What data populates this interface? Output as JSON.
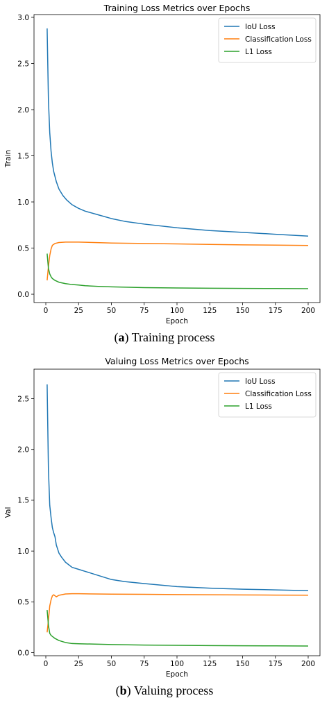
{
  "captions": [
    {
      "letter": "a",
      "text": "Training process"
    },
    {
      "letter": "b",
      "text": "Valuing process"
    }
  ],
  "colors": {
    "iou": "#1f77b4",
    "cls": "#ff7f0e",
    "l1": "#2ca02c"
  },
  "chart_data": [
    {
      "type": "line",
      "title": "Training Loss Metrics over Epochs",
      "xlabel": "Epoch",
      "ylabel": "Train",
      "xlim": [
        -9,
        209
      ],
      "ylim": [
        -0.09,
        3.03
      ],
      "xticks": [
        0,
        25,
        50,
        75,
        100,
        125,
        150,
        175,
        200
      ],
      "yticks": [
        0.0,
        0.5,
        1.0,
        1.5,
        2.0,
        2.5,
        3.0
      ],
      "ytick_labels": [
        "0.0",
        "0.5",
        "1.0",
        "1.5",
        "2.0",
        "2.5",
        "3.0"
      ],
      "grid": false,
      "legend": "top-right",
      "series": [
        {
          "name": "IoU Loss",
          "color": "#1f77b4",
          "x": [
            1,
            2,
            3,
            4,
            5,
            6,
            8,
            10,
            13,
            16,
            20,
            25,
            30,
            40,
            50,
            60,
            75,
            100,
            125,
            150,
            175,
            200
          ],
          "y": [
            2.88,
            2.1,
            1.75,
            1.55,
            1.42,
            1.33,
            1.22,
            1.14,
            1.07,
            1.02,
            0.97,
            0.93,
            0.9,
            0.86,
            0.82,
            0.79,
            0.76,
            0.72,
            0.69,
            0.67,
            0.65,
            0.63
          ]
        },
        {
          "name": "Classification Loss",
          "color": "#ff7f0e",
          "x": [
            1,
            2,
            3,
            4,
            5,
            7,
            10,
            15,
            20,
            25,
            50,
            75,
            100,
            125,
            150,
            175,
            200
          ],
          "y": [
            0.15,
            0.3,
            0.42,
            0.49,
            0.53,
            0.55,
            0.56,
            0.565,
            0.565,
            0.565,
            0.555,
            0.55,
            0.545,
            0.54,
            0.535,
            0.532,
            0.528
          ]
        },
        {
          "name": "L1 Loss",
          "color": "#2ca02c",
          "x": [
            1,
            2,
            3,
            4,
            5,
            7,
            10,
            15,
            20,
            25,
            30,
            40,
            50,
            75,
            100,
            125,
            150,
            175,
            200
          ],
          "y": [
            0.44,
            0.28,
            0.22,
            0.19,
            0.17,
            0.15,
            0.13,
            0.115,
            0.105,
            0.1,
            0.092,
            0.085,
            0.08,
            0.072,
            0.068,
            0.065,
            0.063,
            0.062,
            0.06
          ]
        }
      ]
    },
    {
      "type": "line",
      "title": "Valuing Loss Metrics over Epochs",
      "xlabel": "Epoch",
      "ylabel": "Val",
      "xlim": [
        -9,
        209
      ],
      "ylim": [
        -0.03,
        2.79
      ],
      "xticks": [
        0,
        25,
        50,
        75,
        100,
        125,
        150,
        175,
        200
      ],
      "yticks": [
        0.0,
        0.5,
        1.0,
        1.5,
        2.0,
        2.5
      ],
      "ytick_labels": [
        "0.0",
        "0.5",
        "1.0",
        "1.5",
        "2.0",
        "2.5"
      ],
      "grid": false,
      "legend": "top-right",
      "series": [
        {
          "name": "IoU Loss",
          "color": "#1f77b4",
          "x": [
            1,
            2,
            3,
            4,
            5,
            6,
            7,
            8,
            10,
            12,
            15,
            20,
            25,
            30,
            40,
            50,
            60,
            75,
            100,
            125,
            150,
            175,
            200
          ],
          "y": [
            2.64,
            1.8,
            1.45,
            1.33,
            1.23,
            1.18,
            1.14,
            1.06,
            0.98,
            0.94,
            0.89,
            0.84,
            0.82,
            0.8,
            0.76,
            0.72,
            0.7,
            0.68,
            0.65,
            0.635,
            0.625,
            0.618,
            0.61
          ]
        },
        {
          "name": "Classification Loss",
          "color": "#ff7f0e",
          "x": [
            1,
            2,
            3,
            4,
            5,
            6,
            8,
            10,
            15,
            20,
            25,
            50,
            75,
            100,
            125,
            150,
            175,
            200
          ],
          "y": [
            0.2,
            0.32,
            0.46,
            0.52,
            0.56,
            0.57,
            0.55,
            0.565,
            0.578,
            0.58,
            0.58,
            0.576,
            0.574,
            0.572,
            0.57,
            0.568,
            0.567,
            0.566
          ]
        },
        {
          "name": "L1 Loss",
          "color": "#2ca02c",
          "x": [
            1,
            2,
            3,
            4,
            5,
            7,
            10,
            15,
            20,
            25,
            50,
            75,
            100,
            125,
            150,
            175,
            200
          ],
          "y": [
            0.42,
            0.27,
            0.19,
            0.17,
            0.16,
            0.14,
            0.12,
            0.1,
            0.09,
            0.088,
            0.08,
            0.075,
            0.072,
            0.07,
            0.068,
            0.067,
            0.066
          ]
        }
      ]
    }
  ]
}
